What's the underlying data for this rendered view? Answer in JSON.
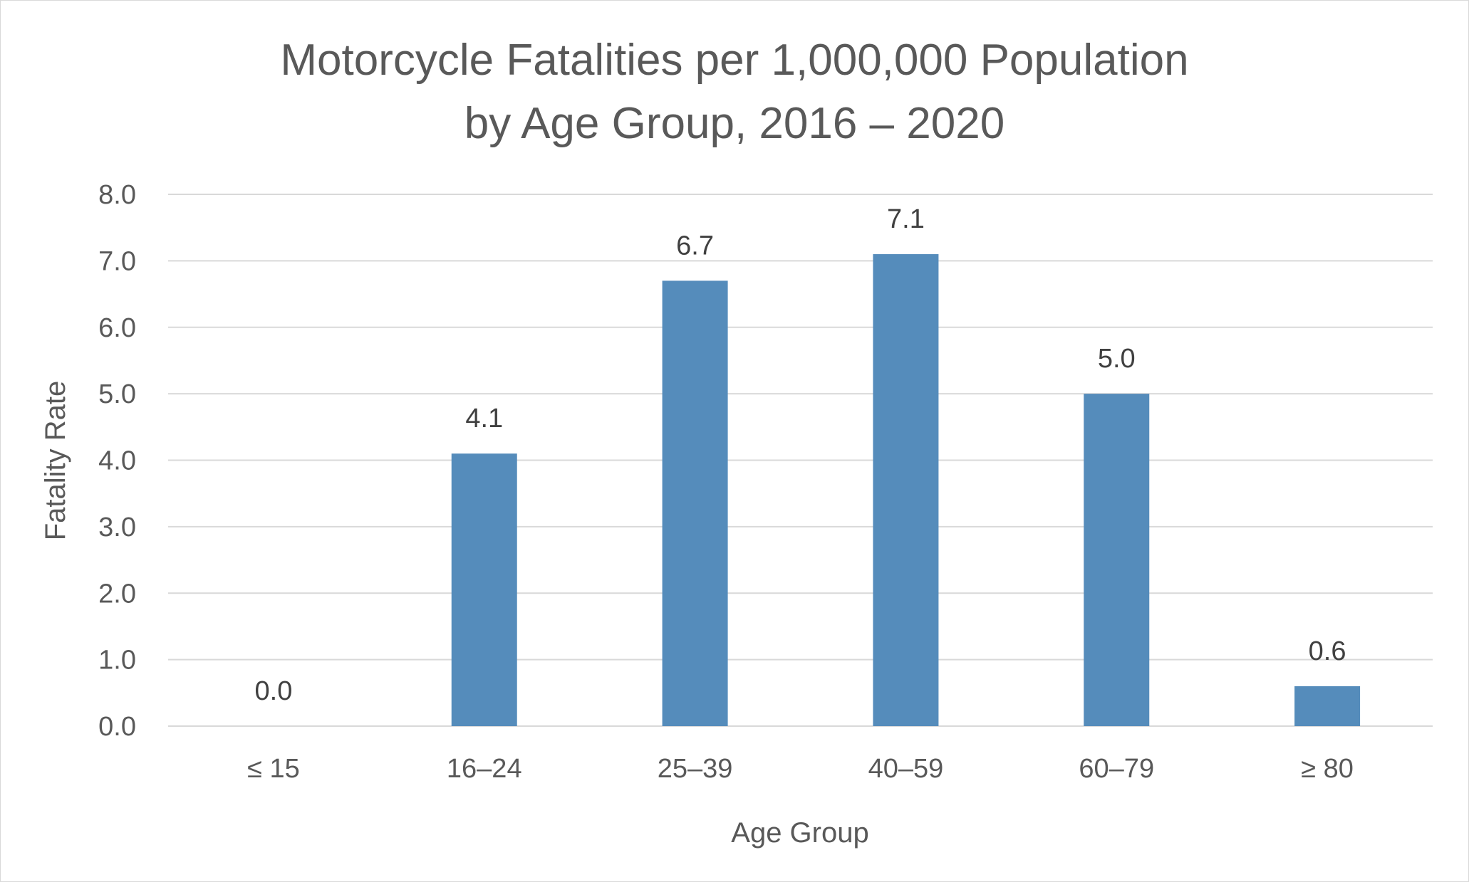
{
  "chart_data": {
    "type": "bar",
    "title_lines": [
      "Motorcycle Fatalities per 1,000,000 Population",
      "by Age Group, 2016 – 2020"
    ],
    "xlabel": "Age Group",
    "ylabel": "Fatality Rate",
    "categories": [
      "≤ 15",
      "16–24",
      "25–39",
      "40–59",
      "60–79",
      "≥ 80"
    ],
    "values": [
      0.0,
      4.1,
      6.7,
      7.1,
      5.0,
      0.6
    ],
    "data_labels": [
      "0.0",
      "4.1",
      "6.7",
      "7.1",
      "5.0",
      "0.6"
    ],
    "ylim": [
      0,
      8
    ],
    "yticks": [
      "0.0",
      "1.0",
      "2.0",
      "3.0",
      "4.0",
      "5.0",
      "6.0",
      "7.0",
      "8.0"
    ],
    "grid": true,
    "legend": "none",
    "colors": {
      "bar": "#558cbb",
      "grid": "#d9d9d9",
      "text": "#595959",
      "label": "#404040"
    }
  }
}
